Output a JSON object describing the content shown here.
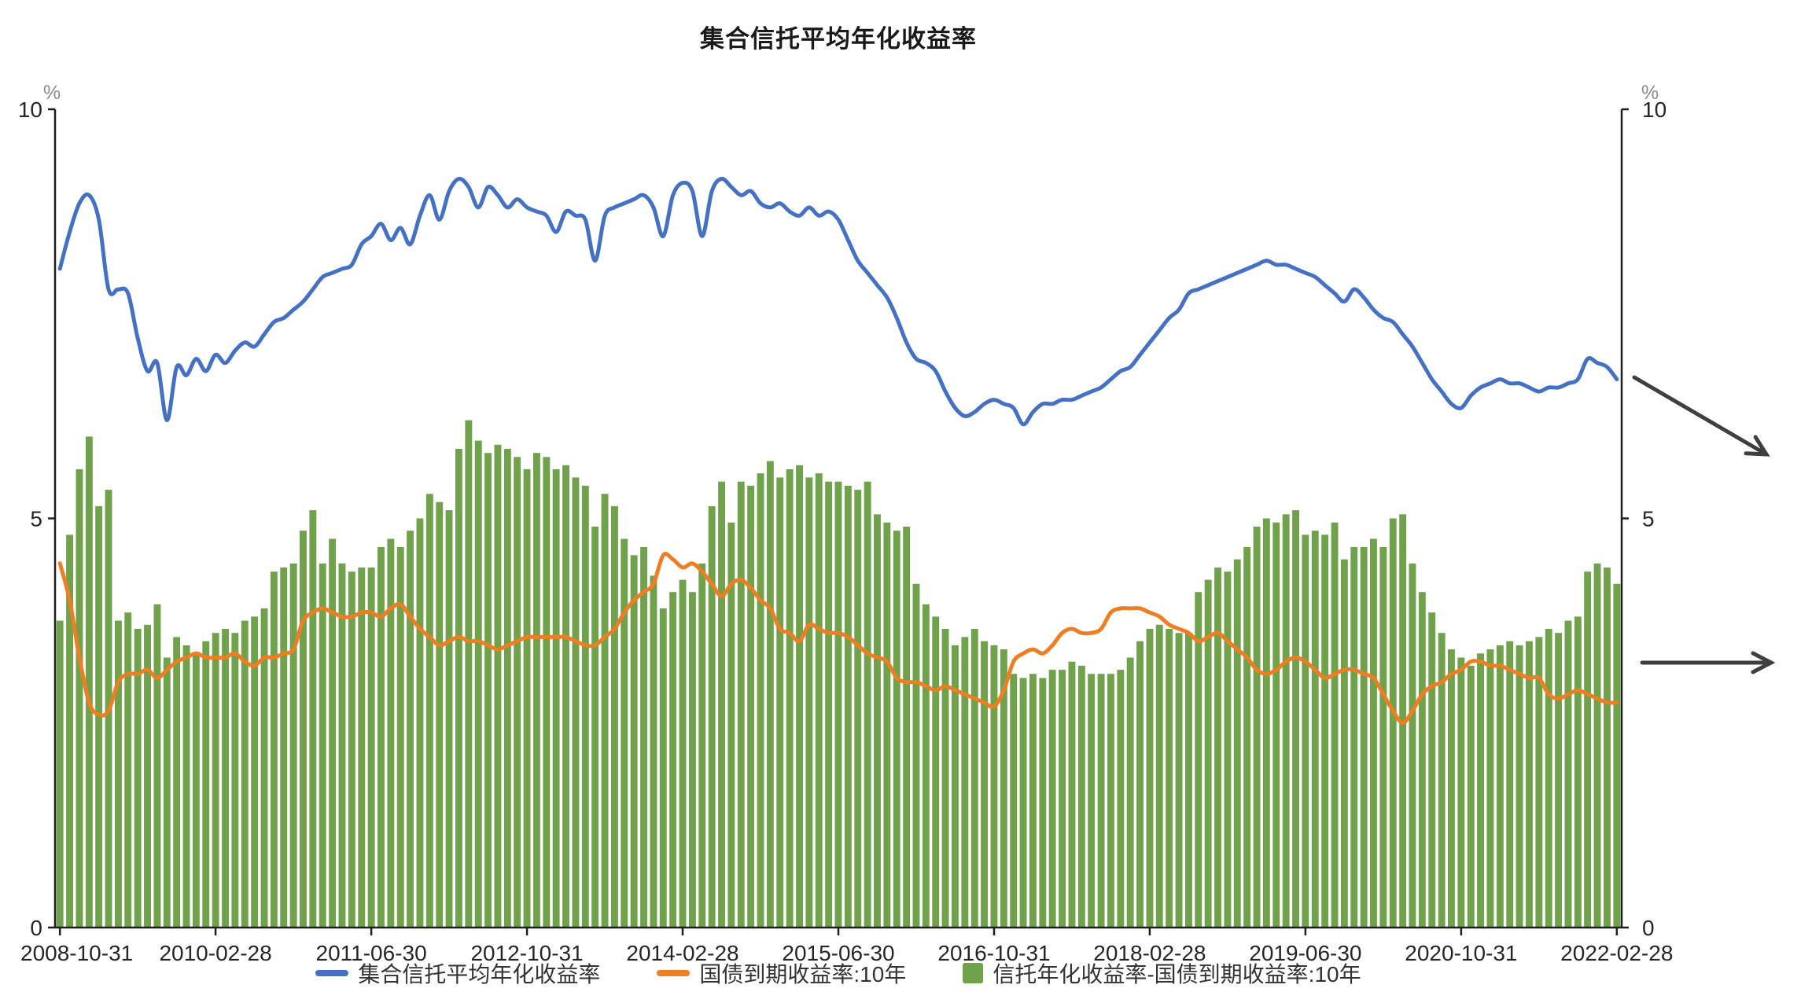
{
  "title": "集合信托平均年化收益率",
  "legend": {
    "items": [
      {
        "label": "集合信托平均年化收益率",
        "type": "line",
        "color": "#4471C4"
      },
      {
        "label": "国债到期收益率:10年",
        "type": "line",
        "color": "#EF7E22"
      },
      {
        "label": "信托年化收益率-国债到期收益率:10年",
        "type": "bar",
        "color": "#70A14B"
      }
    ]
  },
  "axes": {
    "y_left": {
      "unit": "%",
      "ticks": [
        0,
        5,
        10
      ],
      "min": 0,
      "max": 10
    },
    "y_right": {
      "unit": "%",
      "ticks": [
        0,
        5,
        10
      ],
      "min": 0,
      "max": 10
    },
    "x": {
      "tick_labels": [
        "2008-10-31",
        "2010-02-28",
        "2011-06-30",
        "2012-10-31",
        "2014-02-28",
        "2015-06-30",
        "2016-10-31",
        "2018-02-28",
        "2019-06-30",
        "2020-10-31",
        "2022-02-28"
      ],
      "tick_month_indices": [
        0,
        16,
        32,
        48,
        64,
        80,
        96,
        112,
        128,
        144,
        160
      ]
    }
  },
  "colors": {
    "axis": "#1f1f1f",
    "tick_text": "#262626",
    "unit_text": "#8b8b97",
    "arrow": "#3f3f3f",
    "background": "#ffffff"
  },
  "chart_data": {
    "type": "mixed",
    "x_start_month": "2008-10",
    "x_end_month": "2022-02",
    "n_points": 161,
    "ylim": [
      0,
      10
    ],
    "grid": false,
    "legend_position": "bottom",
    "series": [
      {
        "name": "集合信托平均年化收益率",
        "type": "line",
        "axis": "left",
        "color": "#4471C4",
        "values": [
          8.05,
          8.5,
          8.85,
          8.95,
          8.65,
          7.8,
          7.8,
          7.75,
          7.2,
          6.8,
          6.9,
          6.2,
          6.85,
          6.75,
          6.95,
          6.8,
          7.0,
          6.9,
          7.05,
          7.15,
          7.1,
          7.25,
          7.4,
          7.45,
          7.55,
          7.65,
          7.8,
          7.95,
          8.0,
          8.05,
          8.1,
          8.35,
          8.45,
          8.6,
          8.4,
          8.55,
          8.35,
          8.7,
          8.95,
          8.65,
          9.0,
          9.15,
          9.05,
          8.8,
          9.05,
          8.95,
          8.8,
          8.9,
          8.8,
          8.75,
          8.7,
          8.5,
          8.75,
          8.7,
          8.65,
          8.15,
          8.7,
          8.8,
          8.85,
          8.9,
          8.95,
          8.8,
          8.45,
          8.95,
          9.1,
          9.0,
          8.45,
          9.0,
          9.15,
          9.05,
          8.95,
          9.0,
          8.85,
          8.8,
          8.85,
          8.75,
          8.7,
          8.8,
          8.7,
          8.75,
          8.65,
          8.4,
          8.15,
          8.0,
          7.85,
          7.7,
          7.45,
          7.15,
          6.95,
          6.9,
          6.8,
          6.55,
          6.35,
          6.25,
          6.3,
          6.4,
          6.45,
          6.4,
          6.35,
          6.15,
          6.3,
          6.4,
          6.4,
          6.45,
          6.45,
          6.5,
          6.55,
          6.6,
          6.7,
          6.8,
          6.85,
          7.0,
          7.15,
          7.3,
          7.45,
          7.55,
          7.75,
          7.8,
          7.85,
          7.9,
          7.95,
          8.0,
          8.05,
          8.1,
          8.15,
          8.1,
          8.1,
          8.05,
          8.0,
          7.95,
          7.85,
          7.75,
          7.65,
          7.8,
          7.7,
          7.55,
          7.45,
          7.4,
          7.25,
          7.1,
          6.9,
          6.7,
          6.55,
          6.4,
          6.35,
          6.5,
          6.6,
          6.65,
          6.7,
          6.65,
          6.65,
          6.6,
          6.55,
          6.6,
          6.6,
          6.65,
          6.7,
          6.95,
          6.9,
          6.85,
          6.7
        ]
      },
      {
        "name": "国债到期收益率:10年",
        "type": "line",
        "axis": "left",
        "color": "#EF7E22",
        "values": [
          4.45,
          4.0,
          3.3,
          2.75,
          2.6,
          2.65,
          3.0,
          3.1,
          3.1,
          3.15,
          3.05,
          3.15,
          3.25,
          3.3,
          3.35,
          3.3,
          3.3,
          3.3,
          3.35,
          3.25,
          3.2,
          3.3,
          3.3,
          3.35,
          3.4,
          3.75,
          3.85,
          3.9,
          3.85,
          3.8,
          3.8,
          3.85,
          3.85,
          3.8,
          3.9,
          3.95,
          3.8,
          3.65,
          3.55,
          3.45,
          3.5,
          3.55,
          3.5,
          3.5,
          3.45,
          3.4,
          3.45,
          3.5,
          3.55,
          3.55,
          3.55,
          3.55,
          3.55,
          3.5,
          3.45,
          3.45,
          3.55,
          3.65,
          3.85,
          4.0,
          4.1,
          4.2,
          4.55,
          4.5,
          4.4,
          4.45,
          4.35,
          4.2,
          4.05,
          4.2,
          4.25,
          4.15,
          4.0,
          3.9,
          3.65,
          3.6,
          3.5,
          3.7,
          3.65,
          3.6,
          3.6,
          3.55,
          3.45,
          3.35,
          3.3,
          3.25,
          3.05,
          3.0,
          3.0,
          2.95,
          2.9,
          2.95,
          2.9,
          2.85,
          2.8,
          2.75,
          2.7,
          2.9,
          3.25,
          3.35,
          3.4,
          3.35,
          3.45,
          3.6,
          3.65,
          3.6,
          3.6,
          3.65,
          3.85,
          3.9,
          3.9,
          3.9,
          3.85,
          3.8,
          3.7,
          3.65,
          3.6,
          3.5,
          3.55,
          3.6,
          3.5,
          3.4,
          3.3,
          3.15,
          3.1,
          3.15,
          3.25,
          3.3,
          3.25,
          3.15,
          3.05,
          3.1,
          3.15,
          3.15,
          3.1,
          3.05,
          2.85,
          2.65,
          2.5,
          2.65,
          2.85,
          2.95,
          3.0,
          3.1,
          3.15,
          3.25,
          3.25,
          3.2,
          3.2,
          3.15,
          3.1,
          3.05,
          3.05,
          2.85,
          2.8,
          2.85,
          2.9,
          2.85,
          2.8,
          2.75,
          2.75
        ]
      },
      {
        "name": "信托年化收益率-国债到期收益率:10年",
        "type": "bar",
        "axis": "right",
        "color": "#70A14B",
        "values": [
          3.75,
          4.8,
          5.6,
          6.0,
          5.15,
          5.35,
          3.75,
          3.85,
          3.65,
          3.7,
          3.95,
          3.3,
          3.55,
          3.45,
          3.35,
          3.5,
          3.6,
          3.65,
          3.6,
          3.75,
          3.8,
          3.9,
          4.35,
          4.4,
          4.45,
          4.85,
          5.1,
          4.45,
          4.75,
          4.45,
          4.35,
          4.4,
          4.4,
          4.65,
          4.75,
          4.65,
          4.85,
          5.0,
          5.3,
          5.2,
          5.1,
          5.85,
          6.2,
          5.95,
          5.8,
          5.9,
          5.85,
          5.75,
          5.6,
          5.8,
          5.75,
          5.6,
          5.65,
          5.5,
          5.4,
          4.9,
          5.3,
          5.15,
          4.75,
          4.55,
          4.65,
          4.3,
          3.9,
          4.1,
          4.25,
          4.1,
          4.45,
          5.15,
          5.45,
          4.95,
          5.45,
          5.4,
          5.55,
          5.7,
          5.5,
          5.6,
          5.65,
          5.5,
          5.55,
          5.45,
          5.45,
          5.4,
          5.35,
          5.45,
          5.05,
          4.95,
          4.85,
          4.9,
          4.2,
          3.95,
          3.8,
          3.65,
          3.45,
          3.55,
          3.65,
          3.5,
          3.45,
          3.4,
          3.1,
          3.05,
          3.1,
          3.05,
          3.15,
          3.15,
          3.25,
          3.2,
          3.1,
          3.1,
          3.1,
          3.15,
          3.3,
          3.5,
          3.65,
          3.7,
          3.65,
          3.6,
          3.6,
          4.1,
          4.25,
          4.4,
          4.35,
          4.5,
          4.65,
          4.9,
          5.0,
          4.95,
          5.05,
          5.1,
          4.8,
          4.85,
          4.8,
          4.95,
          4.5,
          4.65,
          4.65,
          4.75,
          4.65,
          5.0,
          5.05,
          4.45,
          4.1,
          3.85,
          3.6,
          3.4,
          3.3,
          3.2,
          3.35,
          3.4,
          3.45,
          3.5,
          3.45,
          3.5,
          3.55,
          3.65,
          3.6,
          3.75,
          3.8,
          4.35,
          4.45,
          4.4,
          4.2
        ]
      }
    ],
    "annotations": [
      {
        "type": "arrow",
        "direction": "down-right",
        "near": "end of trust yield line"
      },
      {
        "type": "arrow",
        "direction": "right",
        "near": "end of bond yield line"
      }
    ]
  }
}
